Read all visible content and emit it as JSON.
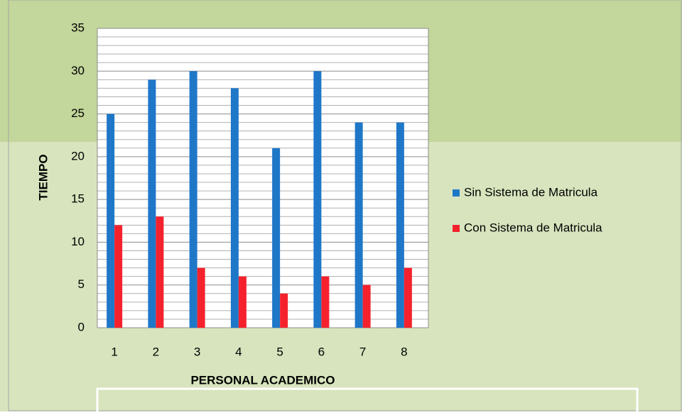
{
  "chart_data": {
    "type": "bar",
    "x_label": "PERSONAL ACADEMICO",
    "y_label": "TIEMPO",
    "categories": [
      "1",
      "2",
      "3",
      "4",
      "5",
      "6",
      "7",
      "8"
    ],
    "series": [
      {
        "name": "Sin Sistema de Matricula",
        "color": "#1f77c8",
        "values": [
          25,
          29,
          30,
          28,
          21,
          30,
          24,
          24
        ]
      },
      {
        "name": "Con Sistema de Matricula",
        "color": "#f5222d",
        "values": [
          12,
          13,
          7,
          6,
          4,
          6,
          5,
          7
        ]
      }
    ],
    "ylim": [
      0,
      35
    ],
    "yticks": [
      0,
      5,
      10,
      15,
      20,
      25,
      30,
      35
    ],
    "grid": true,
    "minor_grid": true,
    "legend": "right"
  }
}
